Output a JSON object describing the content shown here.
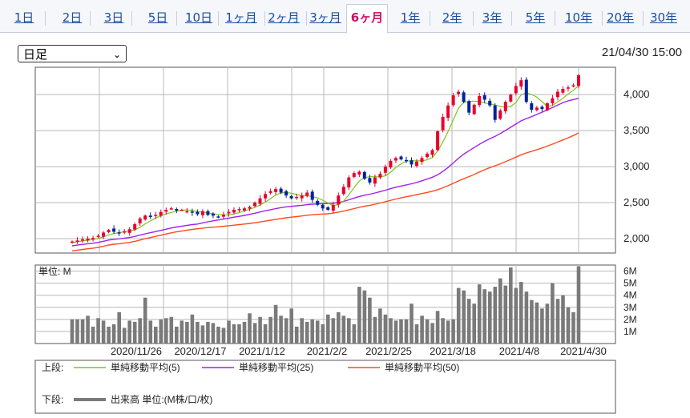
{
  "tabs": [
    {
      "label": "1日",
      "active": false
    },
    {
      "label": "2日",
      "active": false
    },
    {
      "label": "3日",
      "active": false
    },
    {
      "label": "5日",
      "active": false
    },
    {
      "label": "10日",
      "active": false
    },
    {
      "label": "1ヶ月",
      "active": false
    },
    {
      "label": "2ヶ月",
      "active": false
    },
    {
      "label": "3ヶ月",
      "active": false
    },
    {
      "label": "6ヶ月",
      "active": true
    },
    {
      "label": "1年",
      "active": false
    },
    {
      "label": "2年",
      "active": false
    },
    {
      "label": "3年",
      "active": false
    },
    {
      "label": "5年",
      "active": false
    },
    {
      "label": "10年",
      "active": false
    },
    {
      "label": "20年",
      "active": false
    },
    {
      "label": "30年",
      "active": false
    }
  ],
  "period_select": {
    "value": "日足"
  },
  "timestamp": "21/04/30 15:00",
  "colors": {
    "accent_tab": "#cc1166",
    "link": "#1a4fa0",
    "up": "#e8002d",
    "down": "#00229b",
    "ma5": "#7fc41b",
    "ma25": "#a020f0",
    "ma50": "#ff4a1c",
    "volume": "#7a7a7a"
  },
  "chart_data": [
    {
      "type": "candlestick",
      "ylim": [
        1800,
        4380
      ],
      "yticks": [
        "2,000",
        "2,500",
        "3,000",
        "3,500",
        "4,000"
      ],
      "ytick_values": [
        2000,
        2500,
        3000,
        3500,
        4000
      ],
      "xticks": [
        "2020/11/26",
        "2020/12/17",
        "2021/1/12",
        "2021/2/2",
        "2021/2/25",
        "2021/3/18",
        "2021/4/8",
        "2021/4/30"
      ],
      "close": [
        1960,
        1975,
        1990,
        2000,
        2010,
        2040,
        2085,
        2120,
        2095,
        2080,
        2100,
        2130,
        2200,
        2280,
        2320,
        2300,
        2330,
        2370,
        2400,
        2420,
        2390,
        2400,
        2380,
        2360,
        2340,
        2380,
        2330,
        2320,
        2300,
        2330,
        2370,
        2400,
        2410,
        2420,
        2440,
        2500,
        2560,
        2620,
        2660,
        2690,
        2640,
        2600,
        2560,
        2580,
        2600,
        2640,
        2540,
        2470,
        2420,
        2400,
        2470,
        2600,
        2720,
        2850,
        2910,
        2930,
        2830,
        2780,
        2850,
        2900,
        3000,
        3080,
        3120,
        3100,
        3080,
        3030,
        3070,
        3120,
        3180,
        3230,
        3490,
        3690,
        3850,
        3990,
        4040,
        3900,
        3750,
        3860,
        3980,
        3930,
        3850,
        3650,
        3780,
        3900,
        4000,
        4120,
        4200,
        3900,
        3790,
        3820,
        3800,
        3880,
        3950,
        4040,
        4080,
        4100,
        4130,
        4270
      ],
      "volume_unit": "単位: M",
      "volume_yticks": [
        "1M",
        "2M",
        "3M",
        "4M",
        "5M",
        "6M"
      ],
      "volume_ylim": [
        0,
        6.5
      ],
      "volume": [
        2.0,
        2.0,
        2.0,
        2.3,
        1.4,
        2.1,
        1.9,
        1.4,
        1.6,
        2.6,
        1.3,
        1.9,
        1.8,
        2.1,
        3.8,
        1.9,
        1.4,
        2.0,
        2.1,
        2.2,
        1.4,
        1.9,
        1.8,
        2.4,
        1.8,
        1.5,
        1.8,
        1.7,
        1.4,
        1.3,
        1.9,
        1.6,
        1.6,
        1.8,
        2.5,
        1.7,
        2.2,
        1.6,
        2.2,
        3.2,
        2.3,
        2.1,
        2.9,
        1.4,
        2.1,
        1.8,
        2.0,
        1.9,
        1.6,
        2.4,
        2.1,
        2.6,
        2.3,
        2.1,
        1.6,
        4.7,
        4.4,
        3.8,
        2.2,
        2.9,
        2.4,
        2.1,
        1.9,
        2.0,
        2.0,
        3.3,
        1.6,
        2.3,
        2.0,
        1.7,
        2.7,
        2.1,
        1.9,
        2.0,
        4.6,
        4.4,
        3.7,
        3.3,
        4.9,
        4.5,
        4.3,
        4.7,
        5.4,
        4.8,
        6.3,
        4.6,
        5.1,
        4.3,
        3.6,
        3.4,
        2.9,
        3.3,
        5.0,
        3.7,
        4.0,
        3.0,
        2.6,
        6.4
      ],
      "legend": [
        {
          "section": "上段:",
          "items": [
            "単純移動平均(5)",
            "単純移動平均(25)",
            "単純移動平均(50)"
          ]
        },
        {
          "section": "下段:",
          "items": [
            "出来高 単位:(M株/口/枚)"
          ]
        }
      ],
      "grid": true
    }
  ]
}
